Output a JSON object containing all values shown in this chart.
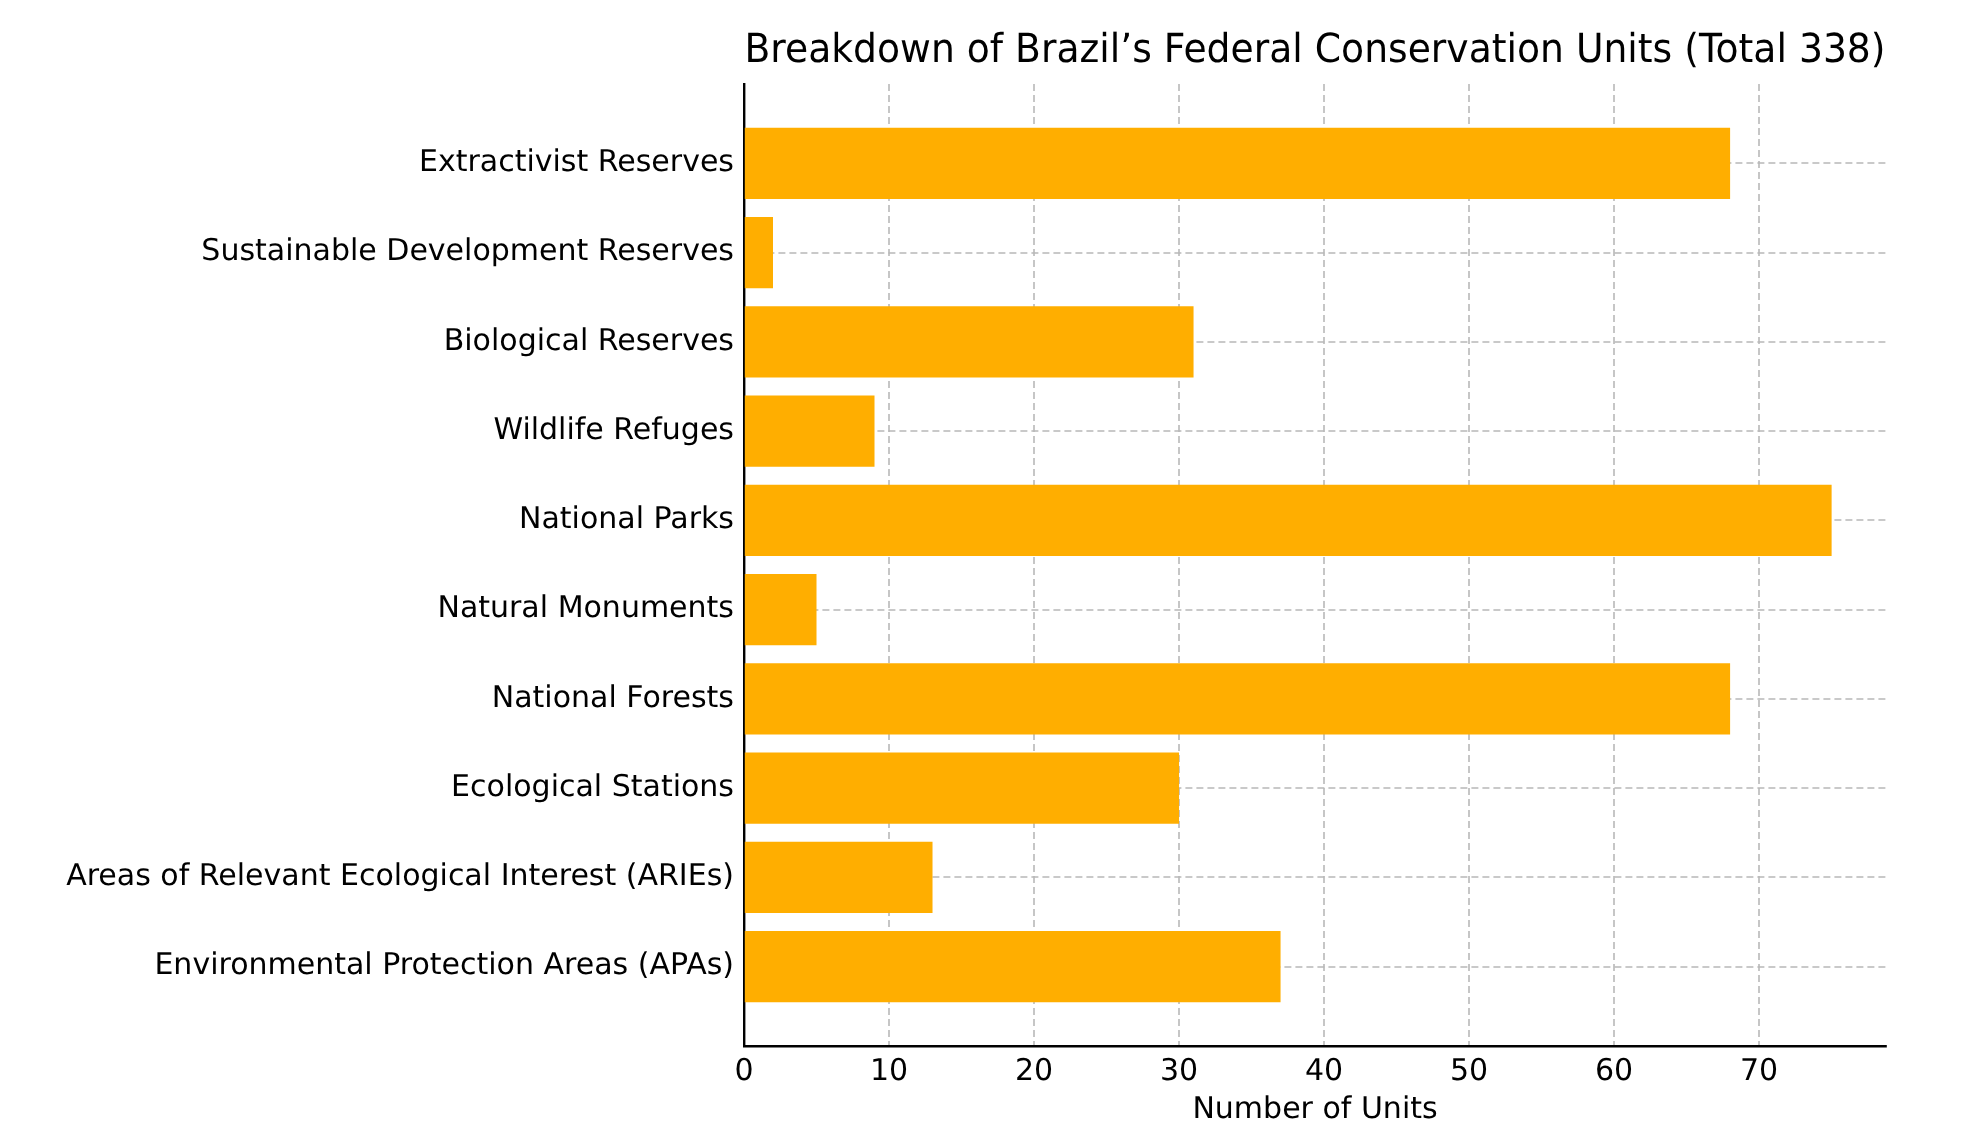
{
  "chart_data": {
    "type": "bar",
    "orientation": "horizontal",
    "title": "Breakdown of Brazil’s Federal Conservation Units (Total 338)",
    "xlabel": "Number of Units",
    "categories": [
      "Extractivist Reserves",
      "Sustainable Development Reserves",
      "Biological Reserves",
      "Wildlife Refuges",
      "National Parks",
      "Natural Monuments",
      "National Forests",
      "Ecological Stations",
      "Areas of Relevant Ecological Interest (ARIEs)",
      "Environmental Protection Areas (APAs)"
    ],
    "values": [
      68,
      2,
      31,
      9,
      75,
      5,
      68,
      30,
      13,
      37
    ],
    "color": "#ffae00",
    "xlim": [
      0,
      78.75
    ],
    "xticks": [
      0,
      10,
      20,
      30,
      40,
      50,
      60,
      70
    ],
    "grid": true
  }
}
